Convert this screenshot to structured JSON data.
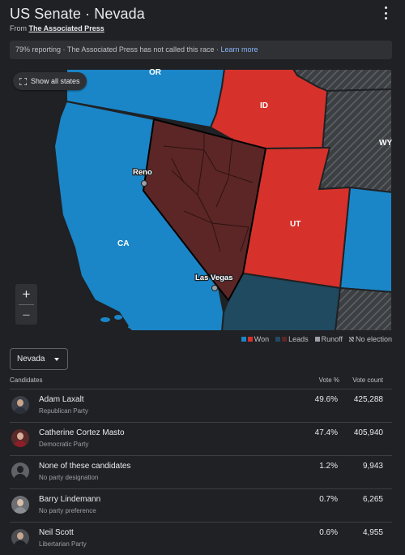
{
  "header": {
    "title": "US Senate · Nevada",
    "from_prefix": "From ",
    "source": "The Associated Press"
  },
  "status": {
    "text": "79% reporting · The Associated Press has not called this race · ",
    "link": "Learn more"
  },
  "map": {
    "show_all_label": "Show all states",
    "state_labels": {
      "or": "OR",
      "id": "ID",
      "wy": "WY",
      "ca": "CA",
      "ut": "UT"
    },
    "city_labels": {
      "reno": "Reno",
      "las_vegas": "Las Vegas"
    },
    "zoom_in": "+",
    "zoom_out": "−",
    "colors": {
      "dem_won": "#1a86c8",
      "rep_won": "#d6322b",
      "dem_leads": "#1f4a5f",
      "rep_leads": "#5c2626",
      "runoff": "#9aa0a6",
      "no_election": "#3c4043"
    }
  },
  "legend": {
    "won": "Won",
    "leads": "Leads",
    "runoff": "Runoff",
    "no_election": "No election"
  },
  "dropdown": {
    "selected": "Nevada"
  },
  "table": {
    "headers": {
      "candidates": "Candidates",
      "vote_pct": "Vote %",
      "vote_count": "Vote count"
    },
    "rows": [
      {
        "name": "Adam Laxalt",
        "party": "Republican Party",
        "pct": "49.6%",
        "count": "425,288"
      },
      {
        "name": "Catherine Cortez Masto",
        "party": "Democratic Party",
        "pct": "47.4%",
        "count": "405,940"
      },
      {
        "name": "None of these candidates",
        "party": "No party designation",
        "pct": "1.2%",
        "count": "9,943"
      },
      {
        "name": "Barry Lindemann",
        "party": "No party preference",
        "pct": "0.7%",
        "count": "6,265"
      },
      {
        "name": "Neil Scott",
        "party": "Libertarian Party",
        "pct": "0.6%",
        "count": "4,955"
      }
    ]
  }
}
